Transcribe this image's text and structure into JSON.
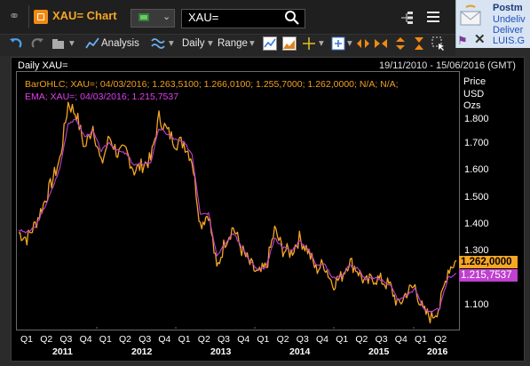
{
  "window": {
    "title": "XAU= Chart",
    "search_value": "XAU="
  },
  "notification": {
    "title": "Postm",
    "lines": [
      "Undeliv",
      "Deliver",
      "LUIS.G"
    ]
  },
  "toolbar": {
    "analysis_label": "Analysis",
    "interval_label": "Daily",
    "range_label": "Range"
  },
  "chart": {
    "name": "Daily XAU=",
    "date_range": "19/11/2010 - 15/06/2016 (GMT)",
    "ohlc_legend": "BarOHLC; XAU=; 04/03/2016; 1.263,5100; 1.266,0100; 1.255,7000; 1.262,0000; N/A; N/A;",
    "ema_legend": "EMA; XAU=; 04/03/2016; 1.215,7537",
    "axis_header": [
      "Price",
      "USD",
      "Ozs"
    ],
    "y_ticks": [
      "1.800",
      "1.700",
      "1.600",
      "1.500",
      "1.400",
      "1.300",
      "1.100"
    ],
    "last_price": "1.262,0000",
    "last_ema": "1.215,7537",
    "x_quarters": [
      "Q1",
      "Q2",
      "Q3",
      "Q4",
      "Q1",
      "Q2",
      "Q3",
      "Q4",
      "Q1",
      "Q2",
      "Q3",
      "Q4",
      "Q1",
      "Q2",
      "Q3",
      "Q4",
      "Q1",
      "Q2",
      "Q3",
      "Q4",
      "Q1",
      "Q2"
    ],
    "x_years": [
      "2011",
      "2012",
      "2013",
      "2014",
      "2015",
      "2016"
    ],
    "colors": {
      "price": "#f5a623",
      "ema": "#c040d0",
      "accent": "#f08a12"
    }
  },
  "chart_data": {
    "type": "line",
    "ylim": [
      1020,
      1930
    ],
    "x": [
      "2010-11",
      "2011-01",
      "2011-02",
      "2011-04",
      "2011-05",
      "2011-07",
      "2011-08",
      "2011-09",
      "2011-10",
      "2011-11",
      "2011-12",
      "2012-02",
      "2012-03",
      "2012-04",
      "2012-05",
      "2012-06",
      "2012-08",
      "2012-10",
      "2012-11",
      "2012-12",
      "2013-01",
      "2013-02",
      "2013-04",
      "2013-05",
      "2013-06",
      "2013-08",
      "2013-09",
      "2013-10",
      "2013-11",
      "2013-12",
      "2014-01",
      "2014-03",
      "2014-04",
      "2014-05",
      "2014-07",
      "2014-08",
      "2014-09",
      "2014-10",
      "2014-11",
      "2014-12",
      "2015-01",
      "2015-02",
      "2015-03",
      "2015-04",
      "2015-05",
      "2015-06",
      "2015-07",
      "2015-08",
      "2015-10",
      "2015-11",
      "2015-12",
      "2016-01",
      "2016-02",
      "2016-03"
    ],
    "series": [
      {
        "values": [
          1360,
          1340,
          1390,
          1460,
          1540,
          1620,
          1820,
          1780,
          1660,
          1740,
          1600,
          1700,
          1640,
          1650,
          1580,
          1600,
          1620,
          1770,
          1720,
          1680,
          1680,
          1620,
          1390,
          1430,
          1230,
          1330,
          1380,
          1300,
          1250,
          1210,
          1240,
          1370,
          1300,
          1290,
          1340,
          1300,
          1230,
          1250,
          1180,
          1200,
          1260,
          1230,
          1180,
          1200,
          1190,
          1170,
          1100,
          1150,
          1170,
          1080,
          1060,
          1100,
          1230,
          1262
        ]
      },
      {
        "values": [
          1370,
          1360,
          1380,
          1440,
          1510,
          1590,
          1750,
          1760,
          1700,
          1720,
          1650,
          1680,
          1650,
          1640,
          1600,
          1605,
          1610,
          1730,
          1710,
          1690,
          1680,
          1640,
          1430,
          1430,
          1280,
          1320,
          1360,
          1310,
          1260,
          1225,
          1240,
          1340,
          1310,
          1295,
          1330,
          1305,
          1250,
          1250,
          1200,
          1205,
          1245,
          1235,
          1195,
          1200,
          1192,
          1175,
          1120,
          1140,
          1160,
          1095,
          1075,
          1095,
          1200,
          1216
        ]
      }
    ]
  }
}
